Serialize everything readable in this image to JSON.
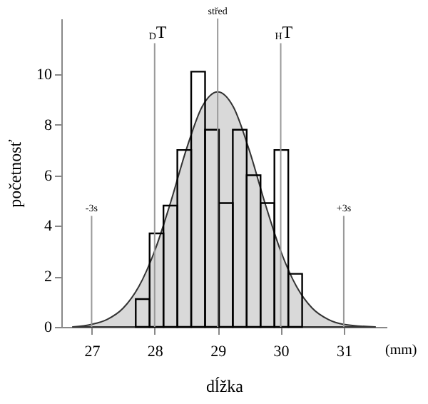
{
  "chart_data": {
    "type": "histogram",
    "xlabel": "dĺžka",
    "ylabel": "početnosť",
    "annotations": [
      "(mm)"
    ],
    "bins": [
      27.7,
      27.92,
      28.14,
      28.36,
      28.58,
      28.8,
      29.02,
      29.24,
      29.46,
      29.68,
      29.9,
      30.12,
      30.34
    ],
    "values": [
      1.1,
      3.7,
      4.8,
      7.0,
      10.1,
      7.8,
      4.9,
      7.8,
      6.0,
      4.9,
      7.0,
      2.1
    ],
    "color": "#000000",
    "series": [
      {
        "type": "area",
        "color": "#d9d9d9",
        "x": [
          26.7,
          27,
          27.25,
          27.5,
          27.75,
          28,
          28.25,
          28.5,
          28.75,
          29,
          29.25,
          29.5,
          29.75,
          30,
          30.25,
          30.5,
          30.75,
          31,
          31.5
        ],
        "values": [
          0,
          0.1,
          0.3,
          0.74,
          1.6,
          3.0,
          4.9,
          7.0,
          8.7,
          9.3,
          8.7,
          7.0,
          4.9,
          3.0,
          1.6,
          0.74,
          0.3,
          0.1,
          0
        ]
      }
    ],
    "ref_lines": [
      {
        "axis": "x",
        "value": 27,
        "label": "-3s",
        "color": "#999999"
      },
      {
        "axis": "x",
        "value": 28,
        "label": "$_{D}$T",
        "color": "#999999"
      },
      {
        "axis": "x",
        "value": 29,
        "label": "střed",
        "color": "#999999"
      },
      {
        "axis": "x",
        "value": 30,
        "label": "$_{H}$T",
        "color": "#999999"
      },
      {
        "axis": "x",
        "value": 31,
        "label": "+3s",
        "color": "#999999"
      }
    ],
    "xlim": [
      26.52,
      31.68
    ],
    "xticks": [
      27,
      28,
      29,
      30,
      31
    ],
    "ylim": [
      0,
      12.2
    ],
    "yticks": [
      0,
      2,
      4,
      6,
      8,
      10
    ],
    "grid": false
  }
}
